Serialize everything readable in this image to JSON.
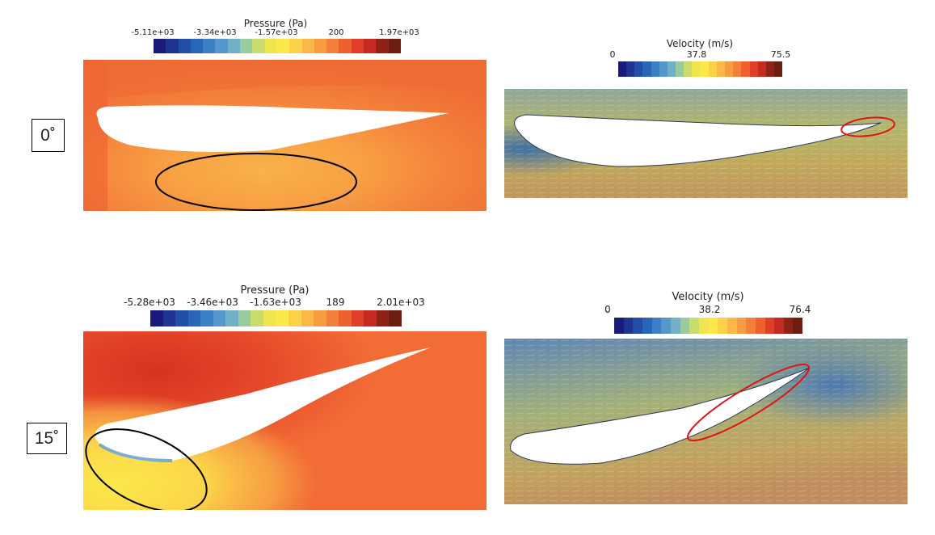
{
  "rows": [
    {
      "angle_label": "0˚",
      "pressure": {
        "title": "Pressure (Pa)",
        "ticks": [
          "-5.11e+03",
          "-3.34e+03",
          "-1.57e+03",
          "200",
          "1.97e+03"
        ]
      },
      "velocity": {
        "title": "Velocity (m/s)",
        "ticks": [
          "0",
          "37.8",
          "75.5"
        ]
      }
    },
    {
      "angle_label": "15˚",
      "pressure": {
        "title": "Pressure (Pa)",
        "ticks": [
          "-5.28e+03",
          "-3.46e+03",
          "-1.63e+03",
          "189",
          "2.01e+03"
        ]
      },
      "velocity": {
        "title": "Velocity (m/s)",
        "ticks": [
          "0",
          "38.2",
          "76.4"
        ]
      }
    }
  ],
  "colormap": [
    "#1a1a7a",
    "#1f3391",
    "#234ea8",
    "#2a66b8",
    "#3b7fc4",
    "#5597cc",
    "#72b0c8",
    "#9acb9f",
    "#c8dd6c",
    "#eee54f",
    "#fde84a",
    "#fdd24a",
    "#fbb848",
    "#f89c42",
    "#f47f3a",
    "#ee6030",
    "#e03f27",
    "#c42a1f",
    "#8f2216",
    "#6b1e10"
  ],
  "highlight_colors": {
    "pressure": "#000000",
    "velocity": "#e01414"
  }
}
